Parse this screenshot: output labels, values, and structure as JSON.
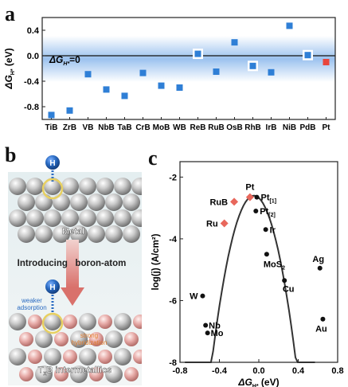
{
  "panels": {
    "a": "a",
    "b": "b",
    "c": "c"
  },
  "panel_b": {
    "adsorbate": "H",
    "metal_label": "Metal",
    "process_label": "Introducing   boron-atom",
    "weaker_line1": "weaker",
    "weaker_line2": "adsorption",
    "strong_line1": "strong",
    "strong_line2": "hybridization",
    "intermetallic_label": "T",
    "intermetallic_sub": "x",
    "intermetallic_rest": "B intermetallics",
    "colors": {
      "metal": "#b8b8b8",
      "boron": "#e6a9a6",
      "hydrogen": "#2a6bc2",
      "highlight": "#e8d060",
      "arrow": "#d9716b"
    }
  },
  "chart_data": [
    {
      "panel": "a",
      "type": "scatter",
      "categories": [
        "TiB",
        "ZrB",
        "VB",
        "NbB",
        "TaB",
        "CrB",
        "MoB",
        "WB",
        "ReB",
        "RuB",
        "OsB",
        "RhB",
        "IrB",
        "NiB",
        "PdB",
        "Pt"
      ],
      "values": [
        -0.93,
        -0.86,
        -0.29,
        -0.53,
        -0.63,
        -0.27,
        -0.47,
        -0.5,
        0.03,
        -0.25,
        0.21,
        -0.16,
        -0.26,
        0.47,
        0.01,
        -0.1
      ],
      "highlight_boxed": [
        "ReB",
        "RhB",
        "PdB"
      ],
      "special_color": {
        "Pt": "#e8453c"
      },
      "ylabel": "ΔG",
      "ylabel_sub": "H*",
      "ylabel_unit": " (eV)",
      "ylim": [
        -1.0,
        0.6
      ],
      "yticks": [
        "0.4",
        "0.0",
        "-0.4",
        "-0.8"
      ],
      "ytick_values": [
        0.4,
        0.0,
        -0.4,
        -0.8
      ],
      "annotation": "ΔG",
      "annotation_sub": "H*",
      "annotation_rest": "=0",
      "marker_color": "#2f7fd6",
      "band_color": "#4a90e2"
    },
    {
      "panel": "c",
      "type": "scatter",
      "xlabel": "ΔG",
      "xlabel_sub": "H*",
      "xlabel_unit": " (eV)",
      "ylabel": "log(j) (A/cm²)",
      "xlim": [
        -0.8,
        0.8
      ],
      "ylim": [
        -8,
        -1.5
      ],
      "xticks": [
        "-0.8",
        "-0.4",
        "0.0",
        "0.4",
        "0.8"
      ],
      "xtick_values": [
        -0.8,
        -0.4,
        0.0,
        0.4,
        0.8
      ],
      "yticks": [
        "-2",
        "-4",
        "-6",
        "-8"
      ],
      "ytick_values": [
        -2,
        -4,
        -6,
        -8
      ],
      "black_points": [
        {
          "label": "Pt",
          "sub": "[1]",
          "x": -0.02,
          "y": -2.65
        },
        {
          "label": "Pt",
          "sub": "[2]",
          "x": -0.03,
          "y": -3.1
        },
        {
          "label": "Ir",
          "sub": "",
          "x": 0.07,
          "y": -3.7
        },
        {
          "label": "MoS",
          "sub": "2",
          "x": 0.08,
          "y": -4.5
        },
        {
          "label": "Cu",
          "sub": "",
          "x": 0.26,
          "y": -5.35
        },
        {
          "label": "Ag",
          "sub": "",
          "x": 0.62,
          "y": -4.95
        },
        {
          "label": "Au",
          "sub": "",
          "x": 0.65,
          "y": -6.6
        },
        {
          "label": "W",
          "sub": "",
          "x": -0.57,
          "y": -5.85
        },
        {
          "label": "Nb",
          "sub": "",
          "x": -0.54,
          "y": -6.8
        },
        {
          "label": "Mo",
          "sub": "",
          "x": -0.52,
          "y": -7.05
        }
      ],
      "red_points": [
        {
          "label": "Pt",
          "x": -0.09,
          "y": -2.65
        },
        {
          "label": "RuB",
          "x": -0.25,
          "y": -2.8
        },
        {
          "label": "Ru",
          "x": -0.35,
          "y": -3.5
        }
      ],
      "volcano_peak": [
        -0.05,
        -2.6
      ],
      "red_color": "#e8675c"
    }
  ]
}
